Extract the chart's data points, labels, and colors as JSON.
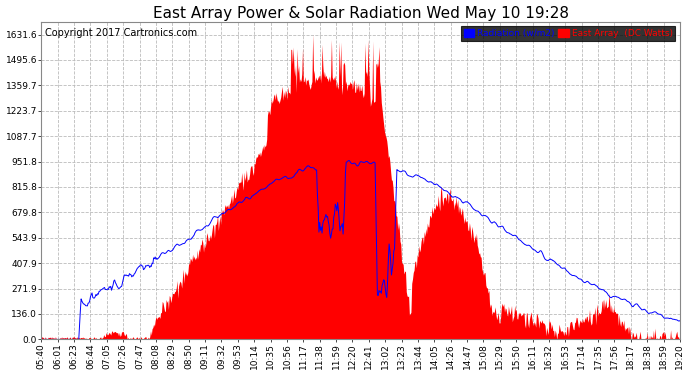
{
  "title": "East Array Power & Solar Radiation Wed May 10 19:28",
  "copyright": "Copyright 2017 Cartronics.com",
  "legend_labels": [
    "Radiation (w/m2)",
    "East Array  (DC Watts)"
  ],
  "legend_colors": [
    "blue",
    "red"
  ],
  "y_tick_labels": [
    "0.0",
    "136.0",
    "271.9",
    "407.9",
    "543.9",
    "679.8",
    "815.8",
    "951.8",
    "1087.7",
    "1223.7",
    "1359.7",
    "1495.6",
    "1631.6"
  ],
  "y_tick_values": [
    0.0,
    136.0,
    271.9,
    407.9,
    543.9,
    679.8,
    815.8,
    951.8,
    1087.7,
    1223.7,
    1359.7,
    1495.6,
    1631.6
  ],
  "ymax": 1700,
  "background_color": "#ffffff",
  "plot_bg_color": "#ffffff",
  "grid_color": "#bbbbbb",
  "grid_style": "--",
  "fill_color": "red",
  "line_color": "blue",
  "title_fontsize": 11,
  "copyright_fontsize": 7,
  "tick_fontsize": 6.5,
  "x_tick_labels": [
    "05:40",
    "06:01",
    "06:23",
    "06:44",
    "07:05",
    "07:26",
    "07:47",
    "08:08",
    "08:29",
    "08:50",
    "09:11",
    "09:32",
    "09:53",
    "10:14",
    "10:35",
    "10:56",
    "11:17",
    "11:38",
    "11:59",
    "12:20",
    "12:41",
    "13:02",
    "13:23",
    "13:44",
    "14:05",
    "14:26",
    "14:47",
    "15:08",
    "15:29",
    "15:50",
    "16:11",
    "16:32",
    "16:53",
    "17:14",
    "17:35",
    "17:56",
    "18:17",
    "18:38",
    "18:59",
    "19:20"
  ]
}
